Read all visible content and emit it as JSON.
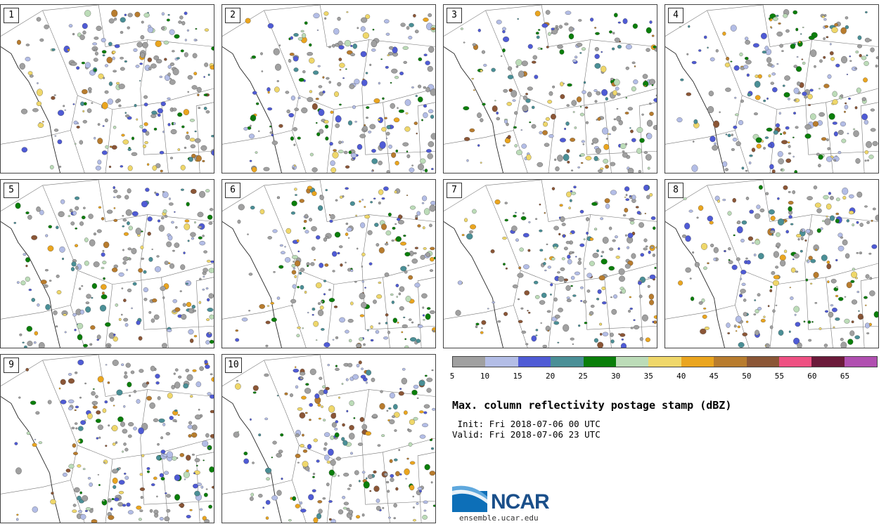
{
  "panels": [
    {
      "label": "1"
    },
    {
      "label": "2"
    },
    {
      "label": "3"
    },
    {
      "label": "4"
    },
    {
      "label": "5"
    },
    {
      "label": "6"
    },
    {
      "label": "7"
    },
    {
      "label": "8"
    },
    {
      "label": "9"
    },
    {
      "label": "10"
    }
  ],
  "colorbar": {
    "colors": [
      "#a0a0a0",
      "#b3bde6",
      "#4f5bd5",
      "#4a8f96",
      "#0a7e0a",
      "#bcdcb8",
      "#efd76a",
      "#eaa51f",
      "#b87c2e",
      "#8b5636",
      "#ee5082",
      "#6b1a3a",
      "#b04fb0"
    ],
    "ticks": [
      "5",
      "10",
      "15",
      "20",
      "25",
      "30",
      "35",
      "40",
      "45",
      "50",
      "55",
      "60",
      "65"
    ]
  },
  "title": "Max. column reflectivity postage stamp (dBZ)",
  "init": " Init: Fri 2018-07-06 00 UTC",
  "valid": "Valid: Fri 2018-07-06 23 UTC",
  "logo": {
    "name": "NCAR",
    "url": "ensemble.ucar.edu"
  }
}
